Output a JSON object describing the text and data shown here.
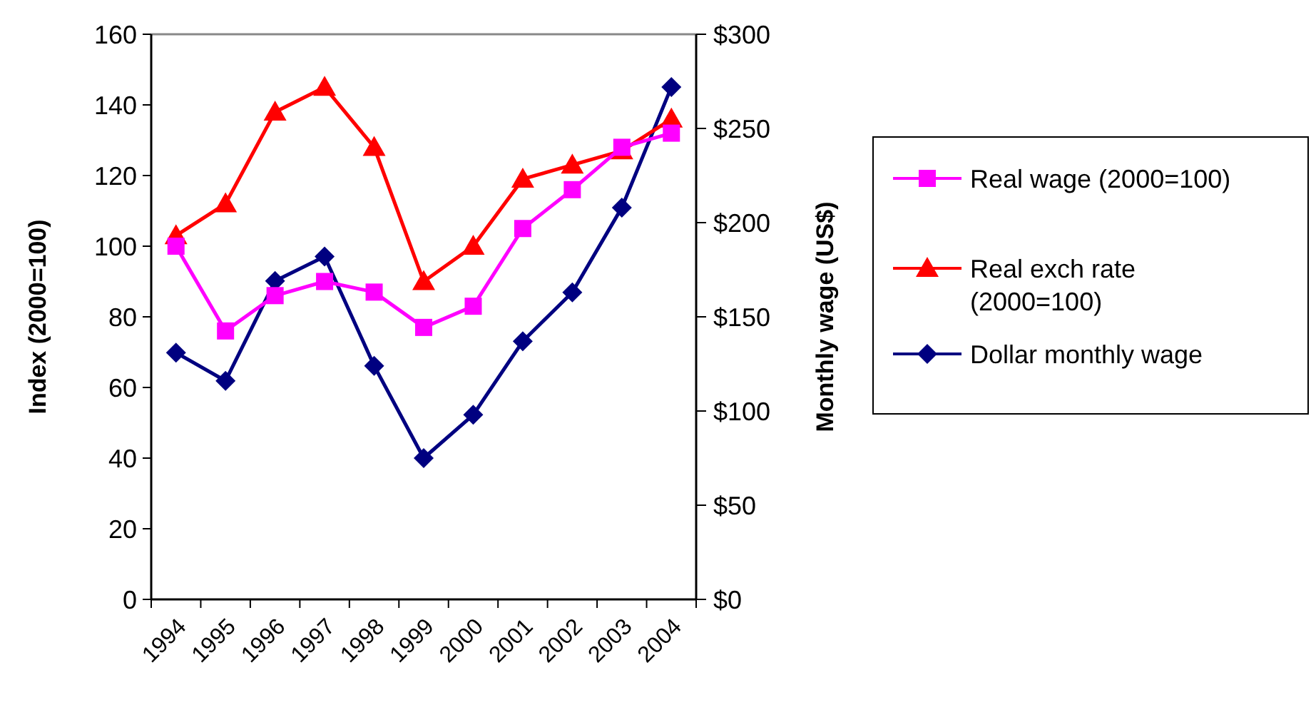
{
  "chart_data": {
    "type": "line",
    "categories": [
      "1994",
      "1995",
      "1996",
      "1997",
      "1998",
      "1999",
      "2000",
      "2001",
      "2002",
      "2003",
      "2004"
    ],
    "ylabel": "Index (2000=100)",
    "y2label": "Monthly wage (US$)",
    "ylim": [
      0,
      160
    ],
    "yticks": [
      0,
      20,
      40,
      60,
      80,
      100,
      120,
      140,
      160
    ],
    "y2lim": [
      0,
      300
    ],
    "y2ticks": [
      {
        "value": 0,
        "label": "$0"
      },
      {
        "value": 50,
        "label": "$50"
      },
      {
        "value": 100,
        "label": "$100"
      },
      {
        "value": 150,
        "label": "$150"
      },
      {
        "value": 200,
        "label": "$200"
      },
      {
        "value": 250,
        "label": "$250"
      },
      {
        "value": 300,
        "label": "$300"
      }
    ],
    "legend": "right",
    "grid": false,
    "series": [
      {
        "name": "Real wage (2000=100)",
        "color": "#ff00ff",
        "marker": "square",
        "values": [
          100,
          76,
          86,
          90,
          87,
          77,
          83,
          105,
          116,
          128,
          132
        ]
      },
      {
        "name": "Real exch rate (2000=100)",
        "color": "#ff0000",
        "marker": "triangle",
        "values": [
          103,
          112,
          138,
          145,
          128,
          90,
          100,
          119,
          123,
          127,
          136
        ]
      },
      {
        "name": "Dollar monthly wage",
        "color": "#000080",
        "marker": "diamond",
        "axis": "y2",
        "values": [
          131,
          116,
          169,
          182,
          124,
          75,
          98,
          137,
          163,
          208,
          272
        ]
      }
    ]
  }
}
